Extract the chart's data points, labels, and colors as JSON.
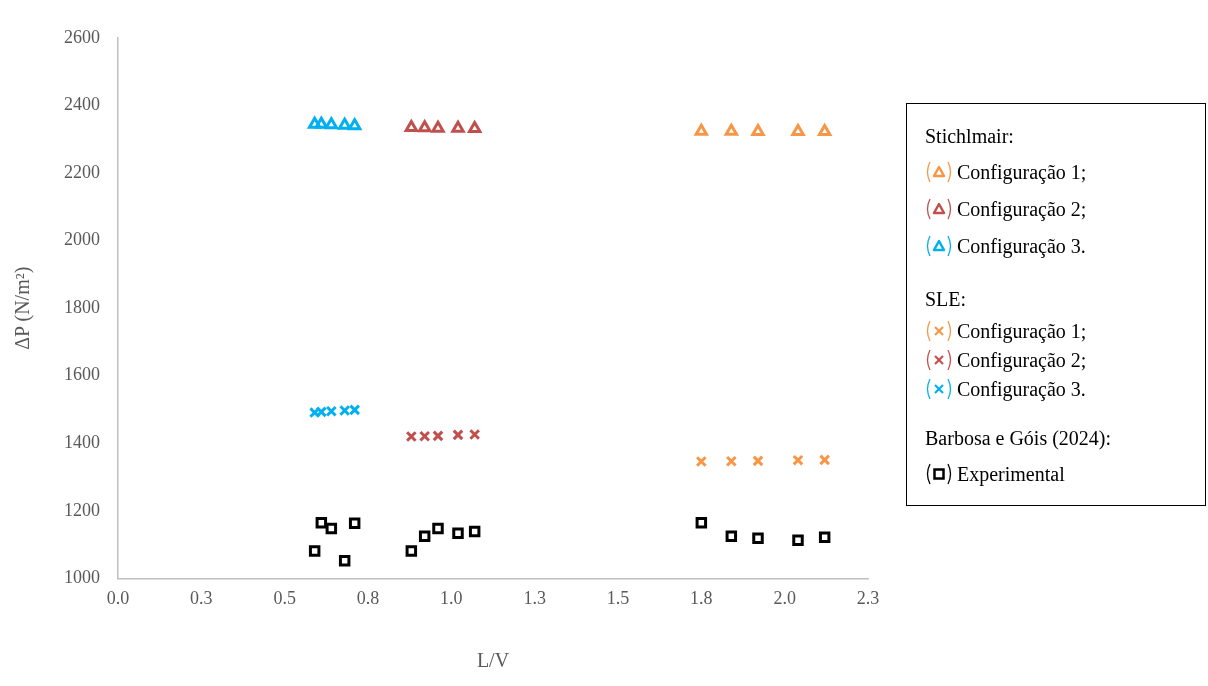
{
  "chart_data": {
    "type": "scatter",
    "xlabel": "L/V",
    "ylabel": "ΔP (N/m²)",
    "xlim": [
      0,
      2.25
    ],
    "xticks": [
      {
        "value": 0,
        "label": "0.0"
      },
      {
        "value": 0.25,
        "label": "0.3"
      },
      {
        "value": 0.5,
        "label": "0.5"
      },
      {
        "value": 0.75,
        "label": "0.8"
      },
      {
        "value": 1,
        "label": "1.0"
      },
      {
        "value": 1.25,
        "label": "1.3"
      },
      {
        "value": 1.5,
        "label": "1.5"
      },
      {
        "value": 1.75,
        "label": "1.8"
      },
      {
        "value": 2,
        "label": "2.0"
      },
      {
        "value": 2.25,
        "label": "2.3"
      }
    ],
    "ylim": [
      1000,
      2600
    ],
    "yticks": [
      1000,
      1200,
      1400,
      1600,
      1800,
      2000,
      2200,
      2400,
      2600
    ],
    "grid": false,
    "legend": "right",
    "annotations": [
      "Stichlmair:",
      "SLE:",
      "Barbosa e Góis (2024):"
    ],
    "series": [
      {
        "name": "Configuração 1;",
        "color": "#f79646",
        "marker": "triangle",
        "x": [
          1.75,
          1.84,
          1.92,
          2.04,
          2.12
        ],
        "values": [
          2324,
          2324,
          2323,
          2323,
          2323
        ]
      },
      {
        "name": "Configuração 2;",
        "color": "#c0504d",
        "marker": "triangle",
        "x": [
          0.88,
          0.92,
          0.96,
          1.02,
          1.07
        ],
        "values": [
          2335,
          2334,
          2333,
          2333,
          2332
        ]
      },
      {
        "name": "Configuração 3.",
        "color": "#00b0f0",
        "marker": "triangle",
        "x": [
          0.59,
          0.61,
          0.64,
          0.68,
          0.71
        ],
        "values": [
          2345,
          2345,
          2343,
          2342,
          2340
        ]
      },
      {
        "name": "Configuração 1;",
        "color": "#f79646",
        "marker": "cross",
        "x": [
          1.75,
          1.84,
          1.92,
          2.04,
          2.12
        ],
        "values": [
          1346,
          1347,
          1348,
          1350,
          1351
        ]
      },
      {
        "name": "Configuração 2;",
        "color": "#c0504d",
        "marker": "cross",
        "x": [
          0.88,
          0.92,
          0.96,
          1.02,
          1.07
        ],
        "values": [
          1420,
          1421,
          1422,
          1425,
          1426
        ]
      },
      {
        "name": "Configuração 3.",
        "color": "#00b0f0",
        "marker": "cross",
        "x": [
          0.59,
          0.61,
          0.64,
          0.68,
          0.71
        ],
        "values": [
          1491,
          1493,
          1495,
          1497,
          1499
        ]
      },
      {
        "name": "Experimental",
        "color": "#000000",
        "marker": "square",
        "x": [
          0.59,
          0.61,
          0.64,
          0.68,
          0.71,
          0.88,
          0.92,
          0.96,
          1.02,
          1.07,
          1.75,
          1.84,
          1.92,
          2.04,
          2.12
        ],
        "values": [
          1081,
          1165,
          1148,
          1052,
          1163,
          1081,
          1125,
          1148,
          1134,
          1139,
          1165,
          1125,
          1119,
          1113,
          1122
        ]
      }
    ]
  }
}
